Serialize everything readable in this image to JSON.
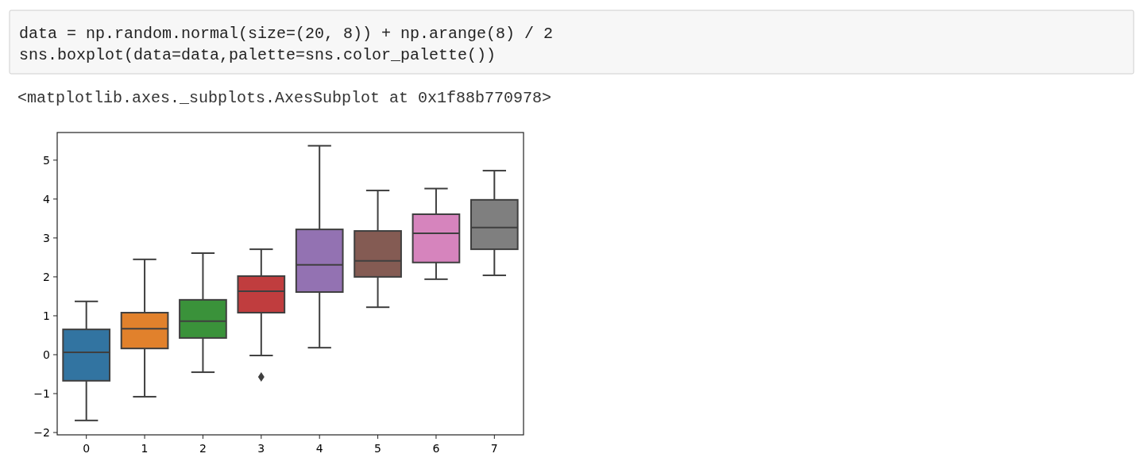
{
  "chart_data": {
    "type": "box",
    "annotations": [
      "data = np.random.normal(size=(20, 8)) + np.arange(8) / 2",
      "sns.boxplot(data=data,palette=sns.color_palette())",
      "<matplotlib.axes._subplots.AxesSubplot at 0x1f88b770978>"
    ],
    "categories": [
      "0",
      "1",
      "2",
      "3",
      "4",
      "5",
      "6",
      "7"
    ],
    "colors": [
      "#3274a1",
      "#e1812c",
      "#3a923a",
      "#c03d3e",
      "#9372b2",
      "#845b53",
      "#d684bd",
      "#7f7f7f"
    ],
    "boxes": [
      {
        "low": -1.69,
        "q1": -0.67,
        "median": 0.06,
        "q3": 0.65,
        "high": 1.37
      },
      {
        "low": -1.08,
        "q1": 0.16,
        "median": 0.67,
        "q3": 1.08,
        "high": 2.45
      },
      {
        "low": -0.45,
        "q1": 0.43,
        "median": 0.86,
        "q3": 1.41,
        "high": 2.61
      },
      {
        "low": -0.02,
        "q1": 1.08,
        "median": 1.63,
        "q3": 2.02,
        "high": 2.71,
        "outliers": [
          -0.57
        ]
      },
      {
        "low": 0.18,
        "q1": 1.61,
        "median": 2.31,
        "q3": 3.22,
        "high": 5.37
      },
      {
        "low": 1.22,
        "q1": 2.0,
        "median": 2.41,
        "q3": 3.18,
        "high": 4.22
      },
      {
        "low": 1.94,
        "q1": 2.37,
        "median": 3.12,
        "q3": 3.61,
        "high": 4.27
      },
      {
        "low": 2.04,
        "q1": 2.71,
        "median": 3.27,
        "q3": 3.98,
        "high": 4.73
      }
    ],
    "ylim": [
      -2.06,
      5.71
    ],
    "yticks": [
      {
        "value": -2,
        "label": "−2"
      },
      {
        "value": -1,
        "label": "−1"
      },
      0,
      1,
      2,
      3,
      4,
      5
    ],
    "grid": false
  }
}
